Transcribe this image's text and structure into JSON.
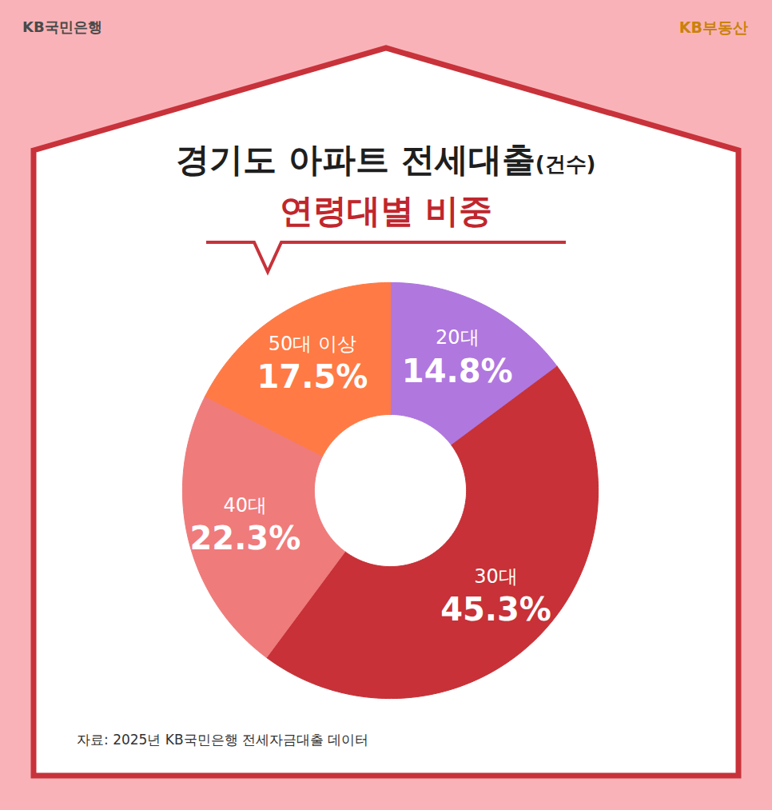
{
  "chart_data": {
    "type": "pie",
    "donut": true,
    "title": "경기도 아파트 전세대출(건수)",
    "subtitle": "연령대별 비중",
    "categories": [
      "20대",
      "30대",
      "40대",
      "50대 이상"
    ],
    "values": [
      14.8,
      45.3,
      22.3,
      17.5
    ],
    "value_labels": [
      "14.8%",
      "45.3%",
      "22.3%",
      "17.5%"
    ],
    "colors": [
      "#b077df",
      "#c73137",
      "#ef7b7b",
      "#ff7a45"
    ],
    "data_labels": true,
    "legend": false,
    "source": "자료: 2025년 KB국민은행 전세자금대출 데이터",
    "logos": [
      "KB국민은행",
      "KB부동산"
    ]
  }
}
